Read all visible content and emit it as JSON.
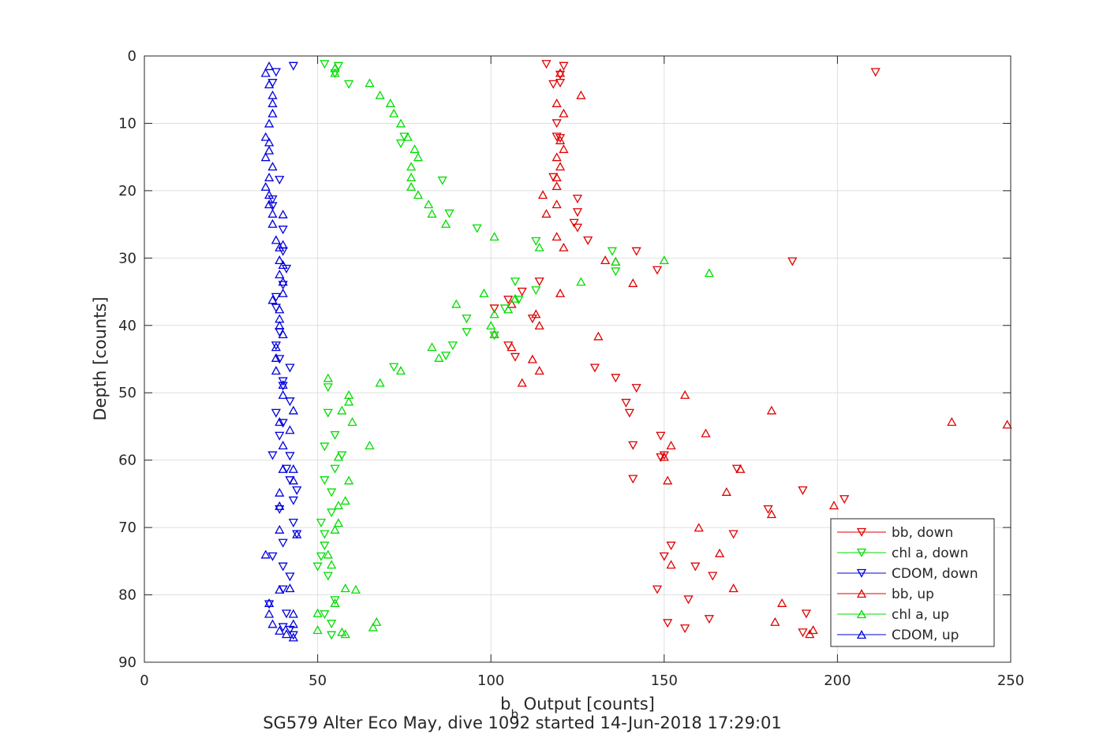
{
  "chart_data": {
    "type": "scatter",
    "xlabel_main": "b",
    "xlabel_sub": "b",
    "xlabel_rest": " Output [counts]",
    "ylabel": "Depth [counts]",
    "caption": "SG579 Alter Eco May, dive 1092 started 14-Jun-2018 17:29:01",
    "xlim": [
      0,
      250
    ],
    "ylim": [
      0,
      90
    ],
    "y_reversed": true,
    "grid": true,
    "legend_position": "bottom-right",
    "x_ticks": [
      0,
      50,
      100,
      150,
      200,
      250
    ],
    "y_ticks": [
      0,
      10,
      20,
      30,
      40,
      50,
      60,
      70,
      80,
      90
    ],
    "series": [
      {
        "name": "bb, down",
        "color": "#e00000",
        "marker": "triangle-down",
        "points": [
          [
            116,
            1.2
          ],
          [
            121,
            1.5
          ],
          [
            211,
            2.4
          ],
          [
            120,
            2.8
          ],
          [
            120,
            4
          ],
          [
            118,
            4.2
          ],
          [
            119,
            10
          ],
          [
            119,
            12
          ],
          [
            120,
            12.2
          ],
          [
            118,
            18
          ],
          [
            125,
            21.2
          ],
          [
            125,
            23.2
          ],
          [
            124,
            24.8
          ],
          [
            125,
            25.5
          ],
          [
            128,
            27.4
          ],
          [
            142,
            29
          ],
          [
            187,
            30.5
          ],
          [
            148,
            31.8
          ],
          [
            114,
            33.5
          ],
          [
            109,
            35
          ],
          [
            105,
            36.2
          ],
          [
            101,
            37.5
          ],
          [
            112,
            39
          ],
          [
            105,
            43
          ],
          [
            107,
            44.7
          ],
          [
            130,
            46.3
          ],
          [
            136,
            47.8
          ],
          [
            142,
            49.3
          ],
          [
            139,
            51.5
          ],
          [
            140,
            53
          ],
          [
            149,
            56.4
          ],
          [
            150,
            59.3
          ],
          [
            149,
            59.6
          ],
          [
            141,
            57.8
          ],
          [
            141,
            62.8
          ],
          [
            171,
            61.3
          ],
          [
            190,
            64.5
          ],
          [
            202,
            65.8
          ],
          [
            180,
            67.3
          ],
          [
            170,
            71
          ],
          [
            152,
            72.7
          ],
          [
            150,
            74.3
          ],
          [
            159,
            75.8
          ],
          [
            164,
            77.2
          ],
          [
            148,
            79.2
          ],
          [
            157,
            80.7
          ],
          [
            191,
            82.8
          ],
          [
            163,
            83.6
          ],
          [
            151,
            84.2
          ],
          [
            156,
            85
          ],
          [
            190,
            85.6
          ]
        ]
      },
      {
        "name": "chl a, down",
        "color": "#00dd00",
        "marker": "triangle-down",
        "points": [
          [
            52,
            1.2
          ],
          [
            56,
            1.5
          ],
          [
            55,
            2.6
          ],
          [
            59,
            4.2
          ],
          [
            75,
            12
          ],
          [
            74,
            13
          ],
          [
            86,
            18.5
          ],
          [
            88,
            23.4
          ],
          [
            96,
            25.6
          ],
          [
            113,
            27.5
          ],
          [
            135,
            29
          ],
          [
            136,
            32
          ],
          [
            107,
            33.5
          ],
          [
            113,
            34.8
          ],
          [
            108,
            36.2
          ],
          [
            104,
            37.5
          ],
          [
            93,
            39
          ],
          [
            93,
            41
          ],
          [
            101,
            41.5
          ],
          [
            89,
            43
          ],
          [
            87,
            44.5
          ],
          [
            72,
            46.2
          ],
          [
            53,
            49.2
          ],
          [
            53,
            53
          ],
          [
            55,
            56.3
          ],
          [
            57,
            59.3
          ],
          [
            52,
            58
          ],
          [
            55,
            61.3
          ],
          [
            52,
            63
          ],
          [
            54,
            64.8
          ],
          [
            54,
            67.8
          ],
          [
            51,
            69.3
          ],
          [
            52,
            71
          ],
          [
            52,
            72.7
          ],
          [
            51,
            74.3
          ],
          [
            50,
            75.8
          ],
          [
            53,
            77.2
          ],
          [
            55,
            80.8
          ],
          [
            52,
            82.9
          ],
          [
            54,
            84.3
          ],
          [
            54,
            86
          ]
        ]
      },
      {
        "name": "CDOM, down",
        "color": "#0000dd",
        "marker": "triangle-down",
        "points": [
          [
            43,
            1.5
          ],
          [
            38,
            2.4
          ],
          [
            37,
            4
          ],
          [
            39,
            18.4
          ],
          [
            37,
            21.3
          ],
          [
            37,
            22.3
          ],
          [
            40,
            25.8
          ],
          [
            40,
            29
          ],
          [
            41,
            31.6
          ],
          [
            40,
            34
          ],
          [
            38,
            35.8
          ],
          [
            38,
            37.4
          ],
          [
            39,
            41
          ],
          [
            38,
            43
          ],
          [
            39,
            45
          ],
          [
            42,
            46.3
          ],
          [
            40,
            48.3
          ],
          [
            40,
            49
          ],
          [
            42,
            51.3
          ],
          [
            38,
            53
          ],
          [
            40,
            54.5
          ],
          [
            39,
            56.4
          ],
          [
            37,
            59.3
          ],
          [
            42,
            59.4
          ],
          [
            41,
            61.3
          ],
          [
            42,
            63
          ],
          [
            44,
            64.5
          ],
          [
            43,
            66
          ],
          [
            39,
            67.3
          ],
          [
            43,
            69.3
          ],
          [
            44,
            71
          ],
          [
            40,
            72.3
          ],
          [
            37,
            74.3
          ],
          [
            40,
            75.8
          ],
          [
            42,
            77.3
          ],
          [
            40,
            79.2
          ],
          [
            36,
            81.4
          ],
          [
            41,
            82.8
          ],
          [
            40,
            84.8
          ],
          [
            43,
            86
          ],
          [
            42,
            85.2
          ]
        ]
      },
      {
        "name": "bb, up",
        "color": "#e00000",
        "marker": "triangle-up",
        "points": [
          [
            120,
            2.5
          ],
          [
            126,
            5.8
          ],
          [
            119,
            7
          ],
          [
            121,
            8.5
          ],
          [
            120,
            12.5
          ],
          [
            121,
            13.8
          ],
          [
            119,
            15
          ],
          [
            120,
            16.4
          ],
          [
            119,
            18
          ],
          [
            119,
            19.3
          ],
          [
            115,
            20.6
          ],
          [
            119,
            22
          ],
          [
            116,
            23.4
          ],
          [
            119,
            26.8
          ],
          [
            121,
            28.4
          ],
          [
            133,
            30.3
          ],
          [
            136,
            30.5
          ],
          [
            141,
            33.7
          ],
          [
            120,
            35.2
          ],
          [
            113,
            38.3
          ],
          [
            114,
            40
          ],
          [
            106,
            36.8
          ],
          [
            131,
            41.6
          ],
          [
            101,
            41.3
          ],
          [
            106,
            43.2
          ],
          [
            112,
            45
          ],
          [
            114,
            46.7
          ],
          [
            109,
            48.5
          ],
          [
            156,
            50.3
          ],
          [
            181,
            52.6
          ],
          [
            233,
            54.3
          ],
          [
            249,
            54.7
          ],
          [
            162,
            56
          ],
          [
            152,
            57.8
          ],
          [
            150,
            59.5
          ],
          [
            172,
            61.3
          ],
          [
            151,
            63
          ],
          [
            168,
            64.7
          ],
          [
            199,
            66.7
          ],
          [
            181,
            68
          ],
          [
            160,
            70
          ],
          [
            166,
            73.8
          ],
          [
            152,
            75.5
          ],
          [
            170,
            79
          ],
          [
            184,
            81.2
          ],
          [
            182,
            84
          ],
          [
            193,
            85.2
          ],
          [
            192,
            85.8
          ]
        ]
      },
      {
        "name": "chl a, up",
        "color": "#00dd00",
        "marker": "triangle-up",
        "points": [
          [
            55,
            1.8
          ],
          [
            55,
            2.5
          ],
          [
            65,
            4
          ],
          [
            68,
            5.8
          ],
          [
            71,
            7
          ],
          [
            72,
            8.5
          ],
          [
            74,
            10
          ],
          [
            76,
            12
          ],
          [
            78,
            13.8
          ],
          [
            79,
            15
          ],
          [
            77,
            16.4
          ],
          [
            77,
            18
          ],
          [
            77,
            19.4
          ],
          [
            79,
            20.6
          ],
          [
            82,
            22
          ],
          [
            83,
            23.4
          ],
          [
            87,
            24.9
          ],
          [
            101,
            26.8
          ],
          [
            114,
            28.4
          ],
          [
            150,
            30.3
          ],
          [
            136,
            30.5
          ],
          [
            163,
            32.2
          ],
          [
            126,
            33.5
          ],
          [
            98,
            35.2
          ],
          [
            107,
            36
          ],
          [
            90,
            36.8
          ],
          [
            105,
            37.6
          ],
          [
            101,
            38.3
          ],
          [
            100,
            40
          ],
          [
            101,
            41.3
          ],
          [
            83,
            43.2
          ],
          [
            85,
            44.8
          ],
          [
            74,
            46.7
          ],
          [
            68,
            48.5
          ],
          [
            53,
            47.8
          ],
          [
            59,
            50.3
          ],
          [
            59,
            51.3
          ],
          [
            57,
            52.6
          ],
          [
            60,
            54.3
          ],
          [
            65,
            57.8
          ],
          [
            56,
            59.5
          ],
          [
            59,
            63
          ],
          [
            58,
            66
          ],
          [
            56,
            66.7
          ],
          [
            56,
            69.3
          ],
          [
            55,
            70.3
          ],
          [
            53,
            74
          ],
          [
            54,
            75.5
          ],
          [
            58,
            79
          ],
          [
            61,
            79.2
          ],
          [
            55,
            81.2
          ],
          [
            50,
            82.7
          ],
          [
            50,
            85.2
          ],
          [
            57,
            85.5
          ],
          [
            58,
            85.8
          ],
          [
            66,
            84.8
          ],
          [
            67,
            84
          ]
        ]
      },
      {
        "name": "CDOM, up",
        "color": "#0000dd",
        "marker": "triangle-up",
        "points": [
          [
            36,
            1.5
          ],
          [
            35,
            2.5
          ],
          [
            36,
            4.2
          ],
          [
            37,
            5.8
          ],
          [
            37,
            7
          ],
          [
            37,
            8.5
          ],
          [
            36,
            10
          ],
          [
            35,
            12
          ],
          [
            36,
            12.8
          ],
          [
            36,
            14
          ],
          [
            35,
            15
          ],
          [
            37,
            16.4
          ],
          [
            36,
            18
          ],
          [
            35,
            19.4
          ],
          [
            36,
            20.6
          ],
          [
            36,
            22
          ],
          [
            37,
            23.4
          ],
          [
            40,
            23.5
          ],
          [
            37,
            24.9
          ],
          [
            38,
            27.3
          ],
          [
            40,
            28
          ],
          [
            39,
            28.4
          ],
          [
            39,
            30.3
          ],
          [
            40,
            31
          ],
          [
            39,
            32.4
          ],
          [
            40,
            33.5
          ],
          [
            40,
            35.2
          ],
          [
            37,
            36.2
          ],
          [
            39,
            37.6
          ],
          [
            39,
            39
          ],
          [
            39,
            40
          ],
          [
            40,
            41.3
          ],
          [
            38,
            43.2
          ],
          [
            38,
            44.8
          ],
          [
            38,
            46.7
          ],
          [
            40,
            48.8
          ],
          [
            40,
            50.3
          ],
          [
            43,
            52.6
          ],
          [
            39,
            54.3
          ],
          [
            42,
            55.5
          ],
          [
            40,
            57.8
          ],
          [
            40,
            61.3
          ],
          [
            43,
            61.3
          ],
          [
            43,
            63
          ],
          [
            39,
            64.8
          ],
          [
            39,
            66.8
          ],
          [
            39,
            70.3
          ],
          [
            44,
            71
          ],
          [
            35,
            74
          ],
          [
            39,
            79.2
          ],
          [
            42,
            79
          ],
          [
            36,
            81.2
          ],
          [
            36,
            82.8
          ],
          [
            43,
            82.8
          ],
          [
            37,
            84.3
          ],
          [
            43,
            84.3
          ],
          [
            39,
            85.3
          ],
          [
            41,
            85.8
          ],
          [
            43,
            86.3
          ]
        ]
      }
    ]
  }
}
